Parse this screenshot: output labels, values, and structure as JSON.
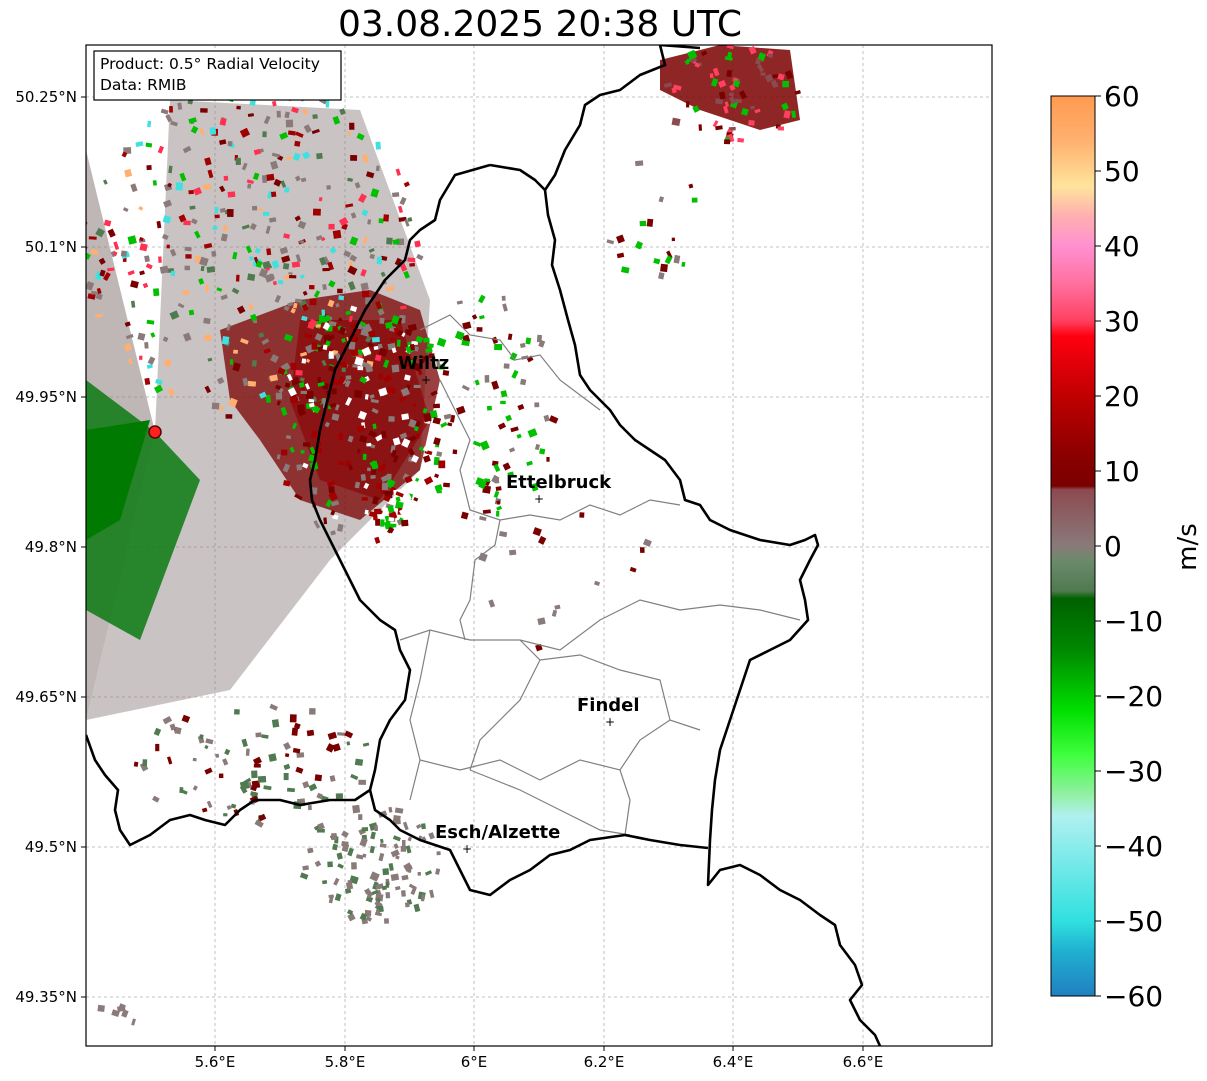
{
  "title": "03.08.2025 20:38 UTC",
  "info_box": {
    "product": "Product: 0.5° Radial Velocity",
    "source": "Data: RMIB"
  },
  "axes": {
    "lon_ticks": [
      "5.6°E",
      "5.8°E",
      "6°E",
      "6.2°E",
      "6.4°E",
      "6.6°E"
    ],
    "lat_ticks": [
      "50.25°N",
      "50.1°N",
      "49.95°N",
      "49.8°N",
      "49.65°N",
      "49.5°N",
      "49.35°N"
    ]
  },
  "cities": [
    {
      "name": "Wiltz"
    },
    {
      "name": "Ettelbruck"
    },
    {
      "name": "Findel"
    },
    {
      "name": "Esch/Alzette"
    }
  ],
  "colorbar": {
    "label": "m/s",
    "tick_labels": [
      "60",
      "50",
      "40",
      "30",
      "20",
      "10",
      "0",
      "−10",
      "−20",
      "−30",
      "−40",
      "−50",
      "−60"
    ],
    "min": -60,
    "max": 60,
    "stops": [
      {
        "value": 60,
        "color": "#ff9a50"
      },
      {
        "value": 54,
        "color": "#ffb070"
      },
      {
        "value": 48,
        "color": "#ffe49a"
      },
      {
        "value": 44,
        "color": "#ffb0b0"
      },
      {
        "value": 40,
        "color": "#ff90d0"
      },
      {
        "value": 35,
        "color": "#ff70a0"
      },
      {
        "value": 30,
        "color": "#ff4060"
      },
      {
        "value": 28,
        "color": "#ff0010"
      },
      {
        "value": 20,
        "color": "#c00000"
      },
      {
        "value": 12,
        "color": "#8a0000"
      },
      {
        "value": 8,
        "color": "#7a0000"
      },
      {
        "value": 7.5,
        "color": "#8c4a50"
      },
      {
        "value": 0,
        "color": "#8a7a7a"
      },
      {
        "value": -2,
        "color": "#6a8a6a"
      },
      {
        "value": -6,
        "color": "#507a50"
      },
      {
        "value": -7,
        "color": "#006000"
      },
      {
        "value": -14,
        "color": "#008a00"
      },
      {
        "value": -22,
        "color": "#00e000"
      },
      {
        "value": -28,
        "color": "#40ff40"
      },
      {
        "value": -33,
        "color": "#90f0a0"
      },
      {
        "value": -36,
        "color": "#b0f0f0"
      },
      {
        "value": -50,
        "color": "#30e0e0"
      },
      {
        "value": -54,
        "color": "#20b0d0"
      },
      {
        "value": -60,
        "color": "#2080c0"
      }
    ]
  },
  "radar_site": {
    "color": "#ff2020"
  }
}
